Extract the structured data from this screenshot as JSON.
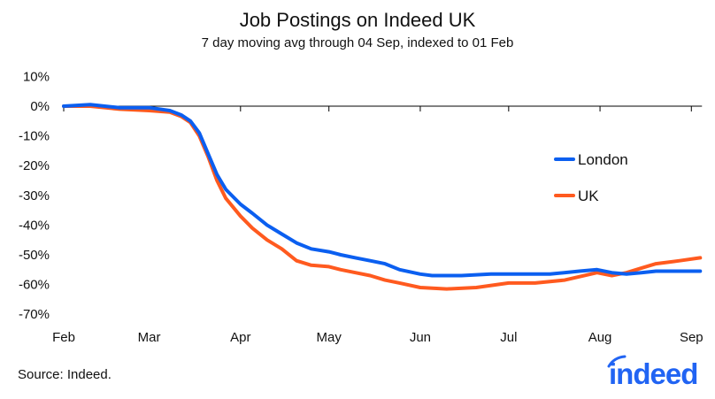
{
  "chart_data": {
    "type": "line",
    "title": "Job Postings on Indeed UK",
    "subtitle": "7 day moving avg through 04 Sep, indexed to 01 Feb",
    "xlabel": "",
    "ylabel": "",
    "ylim": [
      -70,
      10
    ],
    "yticks": [
      "10%",
      "0%",
      "-10%",
      "-20%",
      "-30%",
      "-40%",
      "-50%",
      "-60%",
      "-70%"
    ],
    "ytick_values": [
      10,
      0,
      -10,
      -20,
      -30,
      -40,
      -50,
      -60,
      -70
    ],
    "xticks": [
      "Feb",
      "Mar",
      "Apr",
      "May",
      "Jun",
      "Jul",
      "Aug",
      "Sep"
    ],
    "xtick_dates": [
      "2020-02-01",
      "2020-03-01",
      "2020-04-01",
      "2020-05-01",
      "2020-06-01",
      "2020-07-01",
      "2020-08-01",
      "2020-09-01"
    ],
    "xlim": [
      "2020-02-01",
      "2020-09-04"
    ],
    "grid": false,
    "legend_position": "right",
    "series": [
      {
        "name": "London",
        "color": "#0b5ff0",
        "points": [
          [
            "2020-02-01",
            0
          ],
          [
            "2020-02-10",
            0.5
          ],
          [
            "2020-02-20",
            -0.5
          ],
          [
            "2020-03-01",
            -0.5
          ],
          [
            "2020-03-08",
            -1.5
          ],
          [
            "2020-03-12",
            -3
          ],
          [
            "2020-03-15",
            -5
          ],
          [
            "2020-03-18",
            -9
          ],
          [
            "2020-03-21",
            -16
          ],
          [
            "2020-03-24",
            -23
          ],
          [
            "2020-03-27",
            -28
          ],
          [
            "2020-04-01",
            -33
          ],
          [
            "2020-04-05",
            -36
          ],
          [
            "2020-04-10",
            -40
          ],
          [
            "2020-04-15",
            -43
          ],
          [
            "2020-04-20",
            -46
          ],
          [
            "2020-04-25",
            -48
          ],
          [
            "2020-05-01",
            -49
          ],
          [
            "2020-05-05",
            -50
          ],
          [
            "2020-05-10",
            -51
          ],
          [
            "2020-05-15",
            -52
          ],
          [
            "2020-05-20",
            -53
          ],
          [
            "2020-05-25",
            -55
          ],
          [
            "2020-06-01",
            -56.5
          ],
          [
            "2020-06-05",
            -57
          ],
          [
            "2020-06-15",
            -57
          ],
          [
            "2020-06-25",
            -56.5
          ],
          [
            "2020-07-01",
            -56.5
          ],
          [
            "2020-07-15",
            -56.5
          ],
          [
            "2020-07-25",
            -55.5
          ],
          [
            "2020-07-31",
            -55
          ],
          [
            "2020-08-05",
            -56
          ],
          [
            "2020-08-10",
            -56.5
          ],
          [
            "2020-08-15",
            -56
          ],
          [
            "2020-08-20",
            -55.5
          ],
          [
            "2020-09-04",
            -55.5
          ]
        ]
      },
      {
        "name": "UK",
        "color": "#ff5a1f",
        "points": [
          [
            "2020-02-01",
            0
          ],
          [
            "2020-02-10",
            0
          ],
          [
            "2020-02-20",
            -1
          ],
          [
            "2020-03-01",
            -1.5
          ],
          [
            "2020-03-08",
            -2
          ],
          [
            "2020-03-12",
            -3.5
          ],
          [
            "2020-03-15",
            -5.5
          ],
          [
            "2020-03-18",
            -10
          ],
          [
            "2020-03-21",
            -17
          ],
          [
            "2020-03-24",
            -25
          ],
          [
            "2020-03-27",
            -31
          ],
          [
            "2020-04-01",
            -37
          ],
          [
            "2020-04-05",
            -41
          ],
          [
            "2020-04-10",
            -45
          ],
          [
            "2020-04-15",
            -48
          ],
          [
            "2020-04-20",
            -52
          ],
          [
            "2020-04-25",
            -53.5
          ],
          [
            "2020-05-01",
            -54
          ],
          [
            "2020-05-05",
            -55
          ],
          [
            "2020-05-10",
            -56
          ],
          [
            "2020-05-15",
            -57
          ],
          [
            "2020-05-20",
            -58.5
          ],
          [
            "2020-05-25",
            -59.5
          ],
          [
            "2020-06-01",
            -61
          ],
          [
            "2020-06-10",
            -61.5
          ],
          [
            "2020-06-20",
            -61
          ],
          [
            "2020-07-01",
            -59.5
          ],
          [
            "2020-07-10",
            -59.5
          ],
          [
            "2020-07-20",
            -58.5
          ],
          [
            "2020-07-31",
            -56
          ],
          [
            "2020-08-05",
            -57
          ],
          [
            "2020-08-10",
            -56
          ],
          [
            "2020-08-15",
            -54.5
          ],
          [
            "2020-08-20",
            -53
          ],
          [
            "2020-08-28",
            -52
          ],
          [
            "2020-09-04",
            -51
          ]
        ]
      }
    ]
  },
  "source": "Source: Indeed.",
  "logo_text": "indeed",
  "logo_color": "#2164f3"
}
